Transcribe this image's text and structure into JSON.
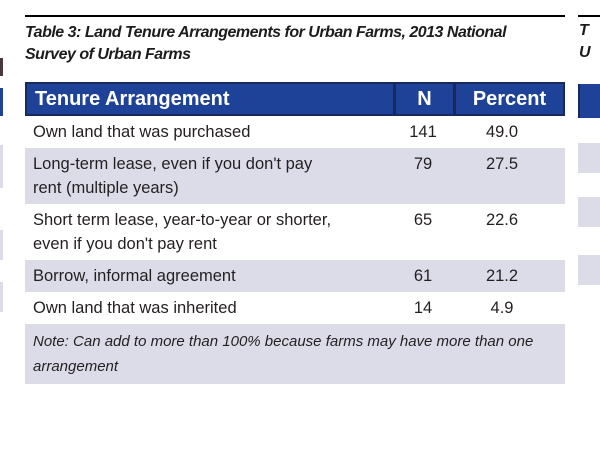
{
  "colors": {
    "header_blue": "#1f4299",
    "navy_border": "#19295c",
    "row_lavender": "#dcdce9",
    "text": "#231f20",
    "rule_black": "#000000"
  },
  "main_table": {
    "title_lines": [
      "Table 3: Land Tenure Arrangements for Urban Farms, 2013 National",
      "Survey of Urban Farms"
    ],
    "columns": [
      "Tenure Arrangement",
      "N",
      "Percent"
    ],
    "rows": [
      {
        "label_lines": [
          "Own land that was purchased"
        ],
        "n": "141",
        "percent": "49.0"
      },
      {
        "label_lines": [
          "Long-term lease, even if you don't pay",
          "rent (multiple years)"
        ],
        "n": "79",
        "percent": "27.5"
      },
      {
        "label_lines": [
          "Short term lease, year-to-year or shorter,",
          "even if you don't pay rent"
        ],
        "n": "65",
        "percent": "22.6"
      },
      {
        "label_lines": [
          "Borrow, informal agreement"
        ],
        "n": "61",
        "percent": "21.2"
      },
      {
        "label_lines": [
          "Own land that was inherited"
        ],
        "n": "14",
        "percent": "4.9"
      }
    ],
    "note_lines": [
      "Note: Can add to more than 100% because farms may have more than one",
      "arrangement"
    ]
  },
  "right_table_fragment": {
    "title_line1": "T",
    "title_line2": "U"
  }
}
